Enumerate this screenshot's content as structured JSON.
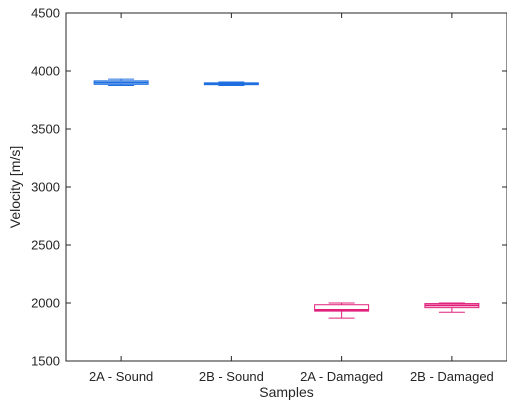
{
  "chart_data": {
    "type": "box",
    "title": "",
    "xlabel": "Samples",
    "ylabel": "Velocity [m/s]",
    "ylim": [
      1500,
      4500
    ],
    "yticks": [
      1500,
      2000,
      2500,
      3000,
      3500,
      4000,
      4500
    ],
    "grid": false,
    "categories": [
      "2A - Sound",
      "2B - Sound",
      "2A - Damaged",
      "2B - Damaged"
    ],
    "boxes": [
      {
        "category": "2A - Sound",
        "min": 3875,
        "q1": 3885,
        "median": 3900,
        "q3": 3915,
        "max": 3930,
        "color": "#1f6fe0"
      },
      {
        "category": "2B - Sound",
        "min": 3875,
        "q1": 3882,
        "median": 3890,
        "q3": 3898,
        "max": 3905,
        "color": "#1f6fe0"
      },
      {
        "category": "2A - Damaged",
        "min": 1870,
        "q1": 1930,
        "median": 1940,
        "q3": 1985,
        "max": 2000,
        "color": "#e0207a"
      },
      {
        "category": "2B - Damaged",
        "min": 1920,
        "q1": 1960,
        "median": 1980,
        "q3": 1995,
        "max": 2000,
        "color": "#e0207a"
      }
    ]
  }
}
